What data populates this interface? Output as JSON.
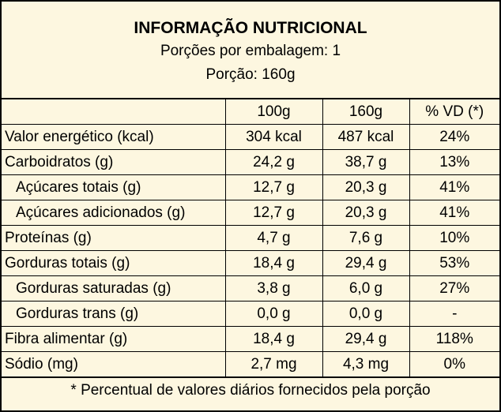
{
  "header": {
    "title": "INFORMAÇÃO NUTRICIONAL",
    "servings": "Porções por embalagem: 1",
    "portion": "Porção: 160g"
  },
  "columns": [
    "",
    "100g",
    "160g",
    "% VD (*)"
  ],
  "rows": [
    {
      "name": "Valor energético (kcal)",
      "v100": "304 kcal",
      "v160": "487 kcal",
      "vd": "24%"
    },
    {
      "name": "Carboidratos (g)",
      "v100": "24,2 g",
      "v160": "38,7 g",
      "vd": "13%"
    },
    {
      "name": "Açúcares totais (g)",
      "v100": "12,7 g",
      "v160": "20,3 g",
      "vd": "41%"
    },
    {
      "name": "Açúcares adicionados (g)",
      "v100": "12,7 g",
      "v160": "20,3 g",
      "vd": "41%"
    },
    {
      "name": "Proteínas (g)",
      "v100": "4,7 g",
      "v160": "7,6 g",
      "vd": "10%"
    },
    {
      "name": "Gorduras totais (g)",
      "v100": "18,4 g",
      "v160": "29,4 g",
      "vd": "53%"
    },
    {
      "name": "Gorduras saturadas (g)",
      "v100": "3,8 g",
      "v160": "6,0 g",
      "vd": "27%"
    },
    {
      "name": "Gorduras trans (g)",
      "v100": "0,0 g",
      "v160": "0,0 g",
      "vd": "-"
    },
    {
      "name": "Fibra alimentar (g)",
      "v100": "18,4 g",
      "v160": "29,4 g",
      "vd": "118%"
    },
    {
      "name": "Sódio (mg)",
      "v100": "2,7 mg",
      "v160": "4,3 mg",
      "vd": "0%"
    }
  ],
  "footer": "* Percentual de valores diários fornecidos pela porção"
}
